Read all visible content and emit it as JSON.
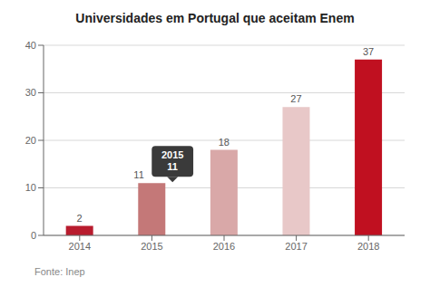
{
  "chart_data": {
    "type": "bar",
    "title": "Universidades em Portugal que aceitam Enem",
    "categories": [
      "2014",
      "2015",
      "2016",
      "2017",
      "2018"
    ],
    "values": [
      2,
      11,
      18,
      27,
      37
    ],
    "colors": [
      "#b81c2e",
      "#c47878",
      "#d9a8a8",
      "#e8c8c8",
      "#c01020"
    ],
    "ylim": [
      0,
      40
    ],
    "yticks": [
      0,
      10,
      20,
      30,
      40
    ],
    "grid": true,
    "data_labels": true,
    "annotations": [
      {
        "category": "2015",
        "text": [
          "2015",
          "11"
        ]
      },
      {
        "text": "Fonte: Inep"
      }
    ]
  }
}
